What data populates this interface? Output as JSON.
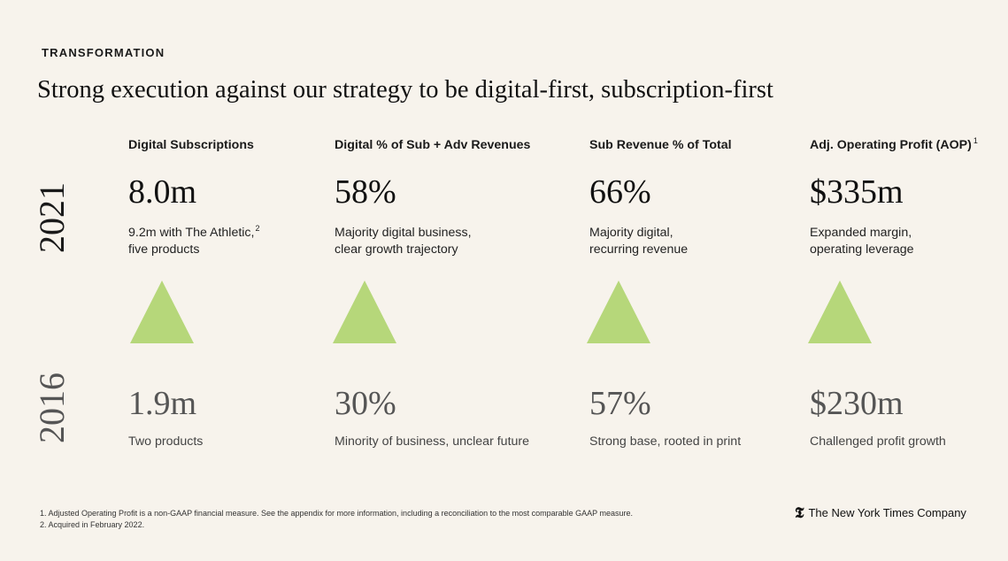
{
  "eyebrow": "TRANSFORMATION",
  "title": "Strong execution against our strategy to be digital-first, subscription-first",
  "years": {
    "current": "2021",
    "previous": "2016"
  },
  "metrics": [
    {
      "label": "Digital Subscriptions",
      "label_sup": "",
      "value_2021": "8.0m",
      "desc_2021_line1": "9.2m with The Athletic,",
      "desc_2021_sup": "2",
      "desc_2021_line2": "five products",
      "value_2016": "1.9m",
      "desc_2016": "Two products"
    },
    {
      "label": "Digital % of Sub + Adv Revenues",
      "label_sup": "",
      "value_2021": "58%",
      "desc_2021_line1": "Majority digital business,",
      "desc_2021_sup": "",
      "desc_2021_line2": "clear growth trajectory",
      "value_2016": "30%",
      "desc_2016": "Minority of business, unclear future"
    },
    {
      "label": "Sub Revenue % of Total",
      "label_sup": "",
      "value_2021": "66%",
      "desc_2021_line1": "Majority digital,",
      "desc_2021_sup": "",
      "desc_2021_line2": "recurring revenue",
      "value_2016": "57%",
      "desc_2016": "Strong base, rooted in print"
    },
    {
      "label": "Adj. Operating Profit (AOP)",
      "label_sup": "1",
      "value_2021": "$335m",
      "desc_2021_line1": "Expanded margin,",
      "desc_2021_sup": "",
      "desc_2021_line2": "operating leverage",
      "value_2016": "$230m",
      "desc_2016": "Challenged profit growth"
    }
  ],
  "triangle_color": "#b6d77a",
  "footnotes": [
    "1. Adjusted Operating Profit is a non-GAAP financial measure. See the appendix for more information, including a reconciliation to the most comparable GAAP measure.",
    "2. Acquired in February 2022."
  ],
  "brand": {
    "mark": "𝕿",
    "name": "The New York Times Company"
  }
}
